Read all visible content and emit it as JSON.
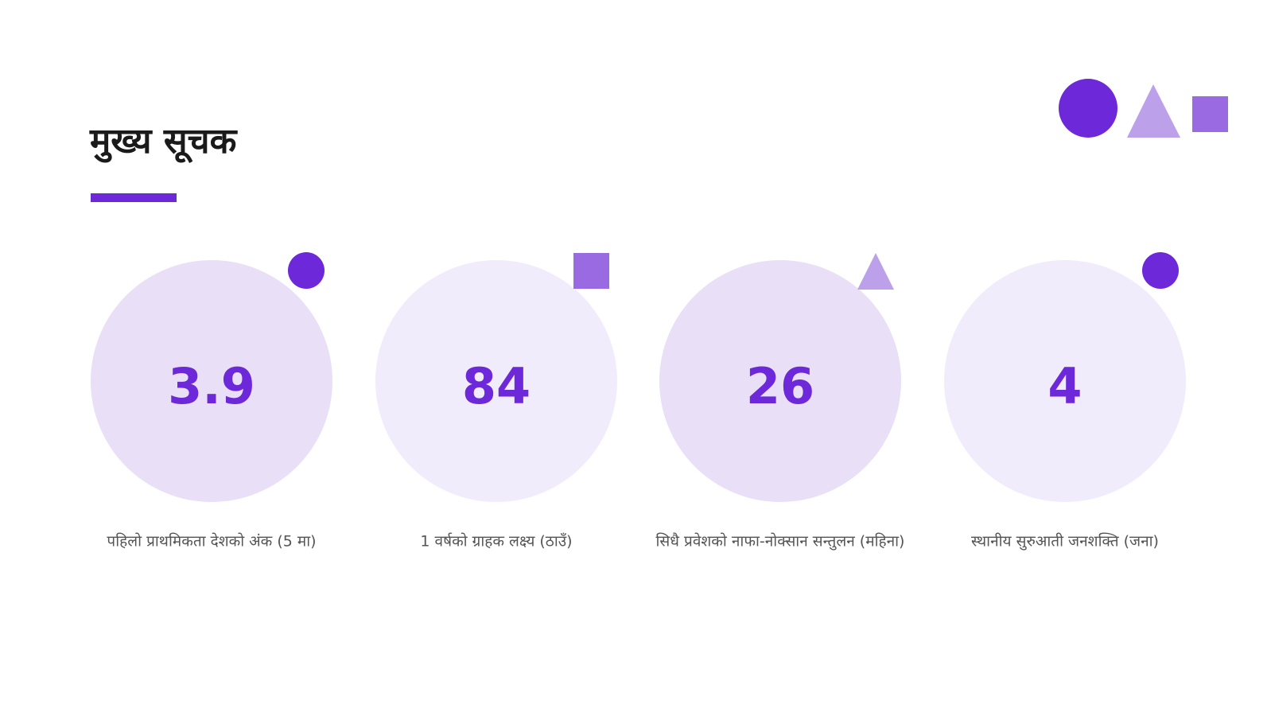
{
  "header": {
    "title": "मुख्य सूचक"
  },
  "kpis": [
    {
      "value": "3.9",
      "label": "पहिलो प्राथमिकता देशको अंक (5 मा)"
    },
    {
      "value": "84",
      "label": "1 वर्षको ग्राहक लक्ष्य (ठाउँ)"
    },
    {
      "value": "26",
      "label": "सिधै प्रवेशको नाफा-नोक्सान सन्तुलन (महिना)"
    },
    {
      "value": "4",
      "label": "स्थानीय सुरुआती जनशक्ति (जना)"
    }
  ]
}
